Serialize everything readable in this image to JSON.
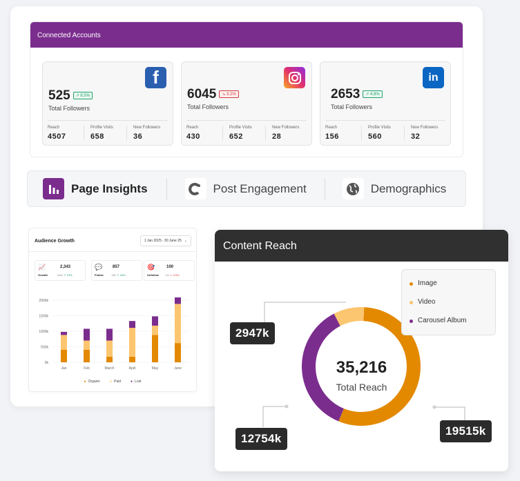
{
  "connected_accounts": {
    "title": "Connected Accounts",
    "accounts": [
      {
        "platform": "Facebook",
        "icon": "facebook-icon",
        "brand_color": "#1877f2",
        "followers": "525",
        "change": "8.5%",
        "trend": "up",
        "followers_label": "Total Followers",
        "reach_label": "Reach",
        "reach": "4507",
        "visits_label": "Profile Visits",
        "visits": "658",
        "new_label": "New Followers",
        "new": "36"
      },
      {
        "platform": "Instagram",
        "icon": "instagram-icon",
        "brand_color": "#e1306c",
        "followers": "6045",
        "change": "3.2%",
        "trend": "down",
        "followers_label": "Total Followers",
        "reach_label": "Reach",
        "reach": "430",
        "visits_label": "Profile Visits",
        "visits": "652",
        "new_label": "New Followers",
        "new": "28"
      },
      {
        "platform": "LinkedIn",
        "icon": "linkedin-icon",
        "brand_color": "#0a66c2",
        "followers": "2653",
        "change": "4.8%",
        "trend": "up",
        "followers_label": "Total Followers",
        "reach_label": "Reach",
        "reach": "156",
        "visits_label": "Profile Visits",
        "visits": "560",
        "new_label": "New Followers",
        "new": "32"
      }
    ]
  },
  "tabs": [
    {
      "label": "Page Insights",
      "icon": "bar-chart-icon",
      "active": true
    },
    {
      "label": "Post Engagement",
      "icon": "magnet-icon",
      "active": false
    },
    {
      "label": "Demographics",
      "icon": "globe-icon",
      "active": false
    }
  ],
  "audience_growth": {
    "title": "Audience Growth",
    "date_range": "1 Jan 2025 - 30 June 25",
    "stats": [
      {
        "label": "Growth",
        "value": "2,343",
        "delta": "+412",
        "pct": "13%",
        "trend": "up"
      },
      {
        "label": "Follow",
        "value": "857",
        "delta": "+62",
        "pct": "18%",
        "trend": "up"
      },
      {
        "label": "Unfollow",
        "value": "100",
        "delta": "-12",
        "pct": "3.5%",
        "trend": "down"
      }
    ],
    "legend": [
      "Organic",
      "Paid",
      "Lost"
    ]
  },
  "content_reach": {
    "title": "Content Reach",
    "total": "35,216",
    "total_label": "Total Reach",
    "legend": [
      "Image",
      "Video",
      "Carousel Album"
    ],
    "callouts": {
      "video": "2947k",
      "carousel": "12754k",
      "image": "19515k"
    }
  },
  "colors": {
    "purple": "#7b2d8e",
    "orange": "#e38900",
    "light_orange": "#fcc56f",
    "dark": "#303030"
  },
  "chart_data": [
    {
      "type": "bar",
      "title": "Audience Growth",
      "categories": [
        "Jan",
        "Feb",
        "March",
        "April",
        "May",
        "June"
      ],
      "yticks": [
        "2000k",
        "1500k",
        "1000k",
        "500k",
        "0k"
      ],
      "ylim": [
        0,
        2000
      ],
      "series": [
        {
          "name": "Organic",
          "values": [
            400,
            400,
            180,
            180,
            880,
            620
          ]
        },
        {
          "name": "Paid",
          "values": [
            480,
            300,
            520,
            930,
            300,
            1260
          ]
        },
        {
          "name": "Lost",
          "values": [
            100,
            380,
            380,
            220,
            300,
            210
          ]
        }
      ]
    },
    {
      "type": "pie",
      "title": "Content Reach",
      "categories": [
        "Image",
        "Video",
        "Carousel Album"
      ],
      "values": [
        19515,
        2947,
        12754
      ]
    }
  ]
}
